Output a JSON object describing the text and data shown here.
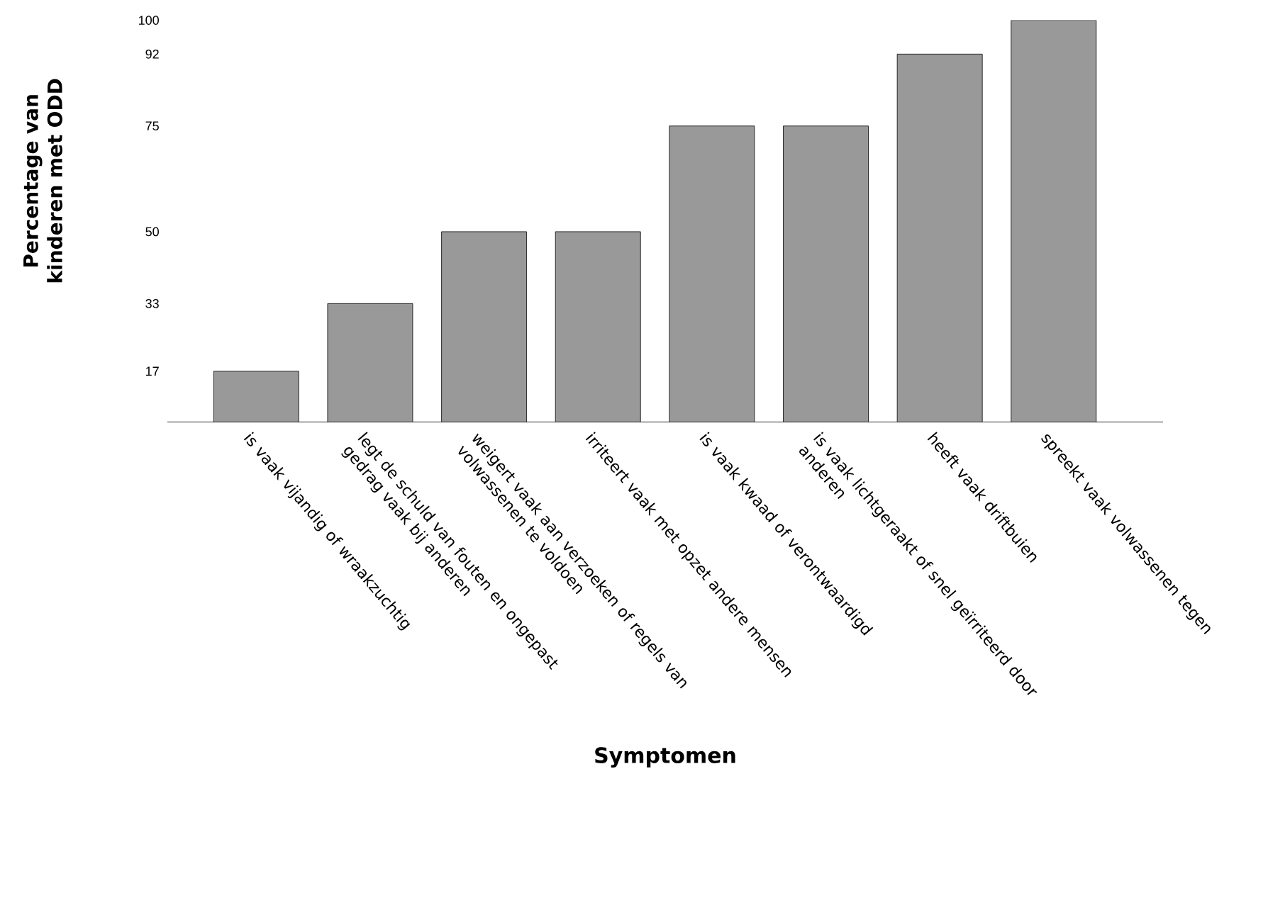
{
  "chart_data": {
    "type": "bar",
    "xlabel": "Symptomen",
    "ylabel": "Percentage van kinderen met ODD",
    "categories": [
      "is vaak vijandig of wraakzuchtig",
      "legt de schuld van fouten en ongepast gedrag vaak bij anderen",
      "weigert vaak aan verzoeken of regels van volwassenen te voldoen",
      "irriteert vaak met opzet andere mensen",
      "is vaak kwaad of verontwaardigd",
      "is vaak lichtgeraakt of snel geïrriteerd door anderen",
      "heeft vaak driftbuien",
      "spreekt vaak volwassenen tegen"
    ],
    "values": [
      17,
      33,
      50,
      50,
      75,
      75,
      92,
      100
    ],
    "color": "#999999",
    "ylim": [
      5,
      100
    ],
    "yticks": [
      17,
      33,
      50,
      75,
      92,
      100
    ],
    "grid": false
  }
}
